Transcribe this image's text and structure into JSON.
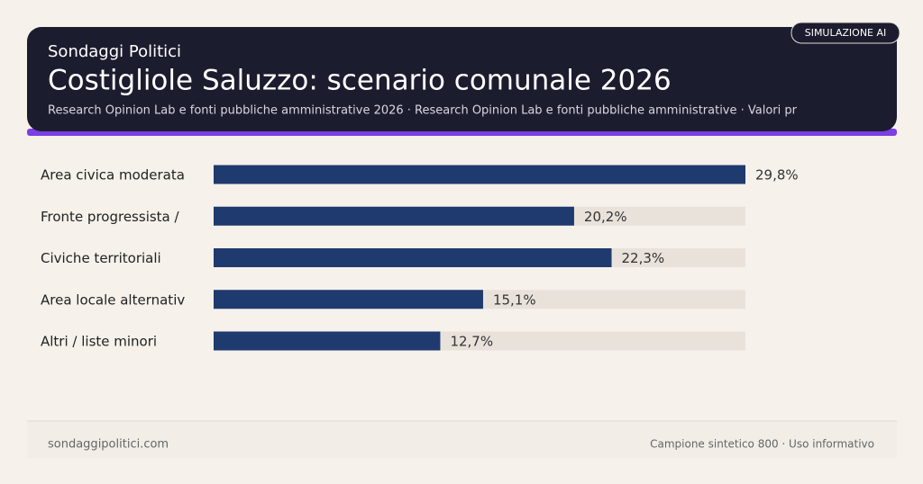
{
  "header": {
    "kicker": "Sondaggi Politici",
    "badge": "SIMULAZIONE AI"
  },
  "chart_data": {
    "type": "bar",
    "orientation": "horizontal",
    "title": "Costigliole Saluzzo: scenario comunale 2026",
    "subtitle": "Research Opinion Lab e fonti pubbliche amministrative 2026 · Research Opinion Lab e fonti pubbliche amministrative · Valori pr",
    "categories": [
      "Area civica moderata",
      "Fronte progressista /",
      "Civiche territoriali",
      "Area locale alternativ",
      "Altri / liste minori"
    ],
    "values": [
      29.8,
      20.2,
      22.3,
      15.1,
      12.7
    ],
    "value_labels": [
      "29,8%",
      "20,2%",
      "22,3%",
      "15,1%",
      "12,7%"
    ],
    "color": "#1e3a6e",
    "track_color": "#e8e2db",
    "xlim": [
      0,
      29.8
    ]
  },
  "footer": {
    "site": "sondaggipolitici.com",
    "note": "Campione sintetico 800 · Uso informativo"
  }
}
